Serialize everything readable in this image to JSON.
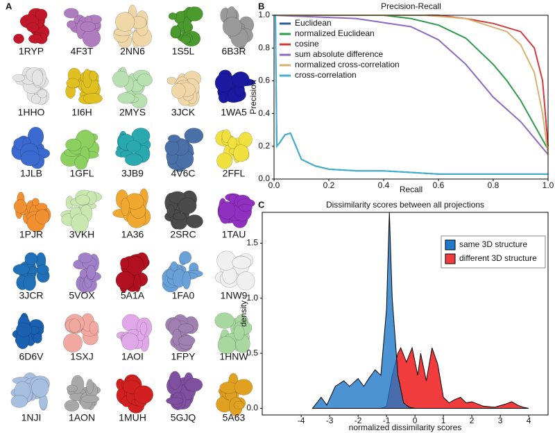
{
  "panel_a": {
    "label": "A",
    "items": [
      {
        "label": "1RYP",
        "color": "#c0182a"
      },
      {
        "label": "4F3T",
        "color": "#b07cc0"
      },
      {
        "label": "2NN6",
        "color": "#f0d7a8"
      },
      {
        "label": "1S5L",
        "color": "#4a9a2e"
      },
      {
        "label": "6B3R",
        "color": "#9a9a9a"
      },
      {
        "label": "1HHO",
        "color": "#e4e4e4"
      },
      {
        "label": "1I6H",
        "color": "#e0c020"
      },
      {
        "label": "2MYS",
        "color": "#b8e0b0"
      },
      {
        "label": "3JCK",
        "color": "#f0d7a8"
      },
      {
        "label": "1WA5",
        "color": "#1a1aa0"
      },
      {
        "label": "1JLB",
        "color": "#3a6ad0"
      },
      {
        "label": "1GFL",
        "color": "#8cd060"
      },
      {
        "label": "3JB9",
        "color": "#2aa8b0"
      },
      {
        "label": "4V6C",
        "color": "#4a70a8"
      },
      {
        "label": "2FFL",
        "color": "#f0e040"
      },
      {
        "label": "1PJR",
        "color": "#f09030"
      },
      {
        "label": "3VKH",
        "color": "#c8e8b0"
      },
      {
        "label": "1A36",
        "color": "#f0a830"
      },
      {
        "label": "2SRC",
        "color": "#4a4a4a"
      },
      {
        "label": "1TAU",
        "color": "#9030c0"
      },
      {
        "label": "3JCR",
        "color": "#2070b8"
      },
      {
        "label": "5VOX",
        "color": "#a080c8"
      },
      {
        "label": "5A1A",
        "color": "#b01020"
      },
      {
        "label": "1FA0",
        "color": "#6aa0d8"
      },
      {
        "label": "1NW9",
        "color": "#f0f0f0"
      },
      {
        "label": "6D6V",
        "color": "#1a60b0"
      },
      {
        "label": "1SXJ",
        "color": "#f0a8a0"
      },
      {
        "label": "1AOI",
        "color": "#e0a8e8"
      },
      {
        "label": "1FPY",
        "color": "#a080b0"
      },
      {
        "label": "1HNW",
        "color": "#a8d8a0"
      },
      {
        "label": "1NJI",
        "color": "#a8c0e0"
      },
      {
        "label": "1AON",
        "color": "#a8a8a8"
      },
      {
        "label": "1MUH",
        "color": "#d02020"
      },
      {
        "label": "5GJQ",
        "color": "#8050a0"
      },
      {
        "label": "5A63",
        "color": "#e0a020"
      }
    ]
  },
  "chart_data": [
    {
      "type": "line",
      "panel": "B",
      "title": "Precision-Recall",
      "x_label": "Recall",
      "y_label": "Precision",
      "xlim": [
        0,
        1.0
      ],
      "ylim": [
        0,
        1.0
      ],
      "xticks": [
        {
          "value": 0,
          "label": "0.0"
        },
        {
          "value": 0.2,
          "label": "0.2"
        },
        {
          "value": 0.4,
          "label": "0.4"
        },
        {
          "value": 0.6,
          "label": "0.6"
        },
        {
          "value": 0.8,
          "label": "0.8"
        },
        {
          "value": 1.0,
          "label": "1.0"
        }
      ],
      "yticks": [
        {
          "value": 0,
          "label": "0.0"
        },
        {
          "value": 0.2,
          "label": "0.2"
        },
        {
          "value": 0.4,
          "label": "0.4"
        },
        {
          "value": 0.6,
          "label": "0.6"
        },
        {
          "value": 0.8,
          "label": "0.8"
        },
        {
          "value": 1.0,
          "label": "1.0"
        }
      ],
      "series": [
        {
          "name": "Euclidean",
          "color": "#2a5a9a",
          "x": [
            0,
            0.005,
            0.01,
            0.02,
            0.04,
            0.06,
            0.08,
            0.1,
            0.15,
            0.2,
            0.3,
            0.4,
            0.5,
            0.6,
            0.8,
            1.0
          ],
          "values": [
            1.0,
            1.0,
            0.2,
            0.22,
            0.27,
            0.28,
            0.2,
            0.12,
            0.08,
            0.06,
            0.05,
            0.05,
            0.04,
            0.03,
            0.03,
            0.03
          ]
        },
        {
          "name": "normalized Euclidean",
          "color": "#2e9a4a",
          "x": [
            0,
            0.4,
            0.5,
            0.6,
            0.7,
            0.8,
            0.85,
            0.9,
            0.95,
            1.0
          ],
          "values": [
            1.0,
            1.0,
            0.98,
            0.94,
            0.86,
            0.7,
            0.6,
            0.48,
            0.33,
            0.18
          ]
        },
        {
          "name": "cosine",
          "color": "#d03a3a",
          "x": [
            0,
            0.6,
            0.7,
            0.8,
            0.9,
            0.95,
            0.98,
            1.0
          ],
          "values": [
            1.0,
            1.0,
            0.98,
            0.95,
            0.9,
            0.8,
            0.6,
            0.2
          ]
        },
        {
          "name": "sum absolute difference",
          "color": "#8a6ac0",
          "x": [
            0,
            0.3,
            0.5,
            0.6,
            0.7,
            0.8,
            0.9,
            1.0
          ],
          "values": [
            1.0,
            0.98,
            0.93,
            0.85,
            0.7,
            0.5,
            0.35,
            0.15
          ]
        },
        {
          "name": "normalized cross-correlation",
          "color": "#d8b070",
          "x": [
            0,
            0.55,
            0.7,
            0.85,
            0.9,
            0.95,
            0.98,
            1.0
          ],
          "values": [
            1.0,
            1.0,
            0.98,
            0.9,
            0.82,
            0.65,
            0.4,
            0.15
          ]
        },
        {
          "name": "cross-correlation",
          "color": "#40b0d0",
          "x": [
            0,
            0.005,
            0.01,
            0.02,
            0.04,
            0.06,
            0.08,
            0.1,
            0.15,
            0.2,
            0.3,
            0.4,
            0.5,
            0.6,
            0.8,
            1.0
          ],
          "values": [
            1.0,
            1.0,
            0.2,
            0.22,
            0.27,
            0.28,
            0.2,
            0.12,
            0.08,
            0.06,
            0.05,
            0.05,
            0.04,
            0.03,
            0.03,
            0.03
          ]
        }
      ]
    },
    {
      "type": "area",
      "panel": "C",
      "title": "Dissimilarity scores between all projections",
      "x_label": "normalized dissimilarity scores",
      "y_label": "density",
      "xlim": [
        -5.37,
        4.68
      ],
      "ylim": [
        -0.06,
        1.78
      ],
      "xticks": [
        -4,
        -3,
        -2,
        -1,
        0,
        1,
        2,
        3,
        4
      ],
      "yticks": [
        {
          "value": 0,
          "label": "0.0"
        },
        {
          "value": 0.5,
          "label": "0.5"
        },
        {
          "value": 1.0,
          "label": "1.0"
        },
        {
          "value": 1.5,
          "label": "1.5"
        }
      ],
      "series": [
        {
          "name": "different 3D structure",
          "color": "#f03c3c",
          "x": [
            -1.2,
            -1.0,
            -0.8,
            -0.6,
            -0.5,
            -0.3,
            -0.1,
            0.1,
            0.2,
            0.4,
            0.6,
            0.8,
            1.0,
            1.2,
            1.4,
            1.6,
            1.8,
            2.0,
            2.4,
            2.8,
            3.2,
            3.4,
            3.6,
            3.8,
            4.0
          ],
          "values": [
            0,
            0.02,
            0.3,
            0.5,
            0.55,
            0.42,
            0.55,
            0.3,
            0.5,
            0.25,
            0.55,
            0.4,
            0.1,
            0.05,
            0.08,
            0.1,
            0.05,
            0.06,
            0.02,
            0.01,
            0.04,
            0.06,
            0.03,
            0.01,
            0
          ]
        },
        {
          "name": "same 3D structure",
          "color": "#1f78c8",
          "x": [
            -3.6,
            -3.3,
            -3.1,
            -2.8,
            -2.5,
            -2.3,
            -2.0,
            -1.8,
            -1.6,
            -1.4,
            -1.2,
            -1.0,
            -0.9,
            -0.8,
            -0.6,
            -0.4,
            -0.2,
            0
          ],
          "values": [
            0,
            0.1,
            0.03,
            0.2,
            0.25,
            0.2,
            0.27,
            0.2,
            0.28,
            0.35,
            0.3,
            0.9,
            1.78,
            1.0,
            0.3,
            0.05,
            0.01,
            0
          ]
        }
      ]
    }
  ]
}
